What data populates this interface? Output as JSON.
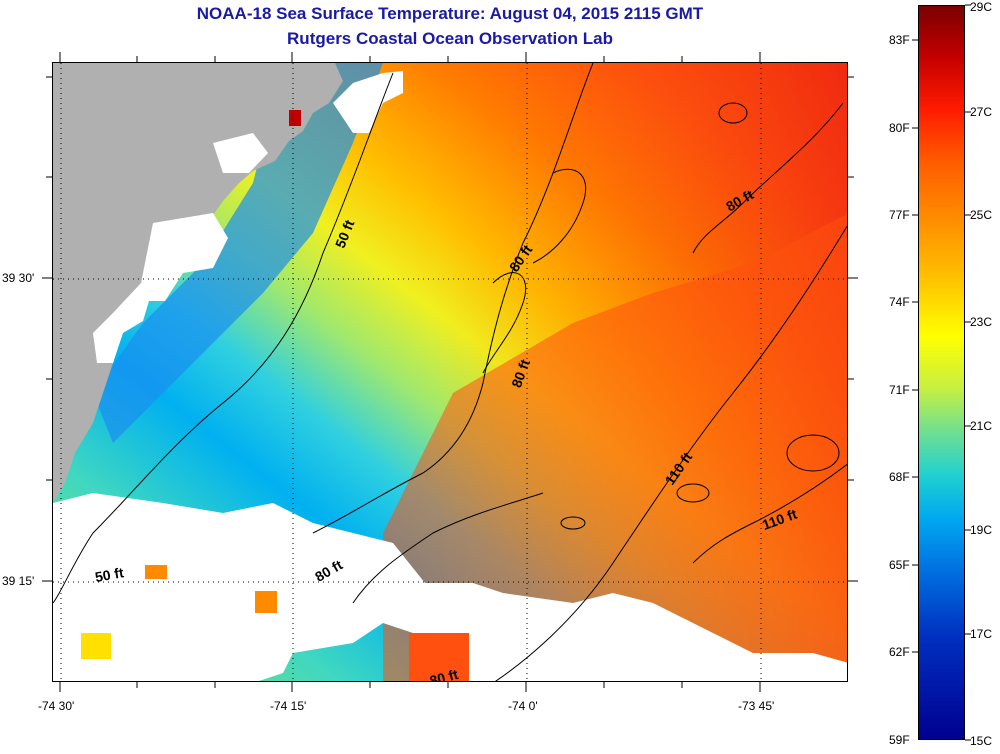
{
  "header": {
    "title_line1": "NOAA-18 Sea Surface Temperature:  August 04, 2015 2115 GMT",
    "title_line2": "Rutgers Coastal Ocean Observation Lab"
  },
  "map": {
    "lat_labels": [
      {
        "text": "39 30'",
        "lat": 39.5
      },
      {
        "text": "39 15'",
        "lat": 39.25
      }
    ],
    "lon_labels": [
      {
        "text": "-74 30'",
        "lon": -74.5
      },
      {
        "text": "-74 15'",
        "lon": -74.25
      },
      {
        "text": "-74 0'",
        "lon": -74.0
      },
      {
        "text": "-73 45'",
        "lon": -73.75
      }
    ],
    "contour_labels": [
      "50 ft",
      "50 ft",
      "80 ft",
      "80 ft",
      "80 ft",
      "80 ft",
      "80 ft",
      "110 ft",
      "110 ft"
    ],
    "colors": {
      "land": "#b0b0b0",
      "cloud": "#ffffff"
    }
  },
  "colorbar": {
    "fahrenheit": [
      "83F",
      "80F",
      "77F",
      "74F",
      "71F",
      "68F",
      "65F",
      "62F",
      "59F"
    ],
    "celsius": [
      "29C",
      "27C",
      "25C",
      "23C",
      "21C",
      "19C",
      "17C",
      "15C"
    ]
  }
}
